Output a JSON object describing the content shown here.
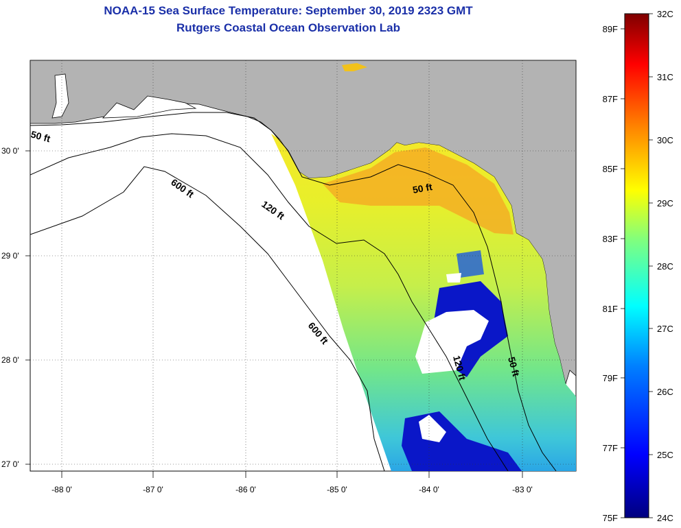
{
  "header": {
    "title": "NOAA-15 Sea Surface Temperature:  September 30, 2019 2323 GMT",
    "subtitle": "Rutgers Coastal Ocean Observation Lab"
  },
  "map": {
    "longitude_labels": [
      "-88 0'",
      "-87 0'",
      "-86 0'",
      "-85 0'",
      "-84 0'",
      "-83 0'"
    ],
    "latitude_labels": [
      "30 0'",
      "29 0'",
      "28 0'",
      "27 0'"
    ],
    "longitude_range": [
      -88.35,
      -82.45
    ],
    "latitude_range": [
      26.96,
      30.9
    ],
    "contour_labels": [
      "50 ft",
      "600 ft",
      "120 ft",
      "50 ft",
      "600 ft",
      "120 ft",
      "50 ft"
    ],
    "colors": {
      "land": "#b3b3b3",
      "no_data": "#ffffff"
    }
  },
  "colorbar": {
    "range_c": [
      24,
      32
    ],
    "celsius_labels": [
      "32C",
      "31C",
      "30C",
      "29C",
      "28C",
      "27C",
      "26C",
      "25C",
      "24C"
    ],
    "fahrenheit_labels": [
      "89F",
      "87F",
      "85F",
      "83F",
      "81F",
      "79F",
      "77F",
      "75F"
    ],
    "colormap": [
      "#00007f",
      "#0000ff",
      "#007fff",
      "#00ffff",
      "#7fff7f",
      "#ffff00",
      "#ff7f00",
      "#ff0000",
      "#7f0000"
    ]
  }
}
